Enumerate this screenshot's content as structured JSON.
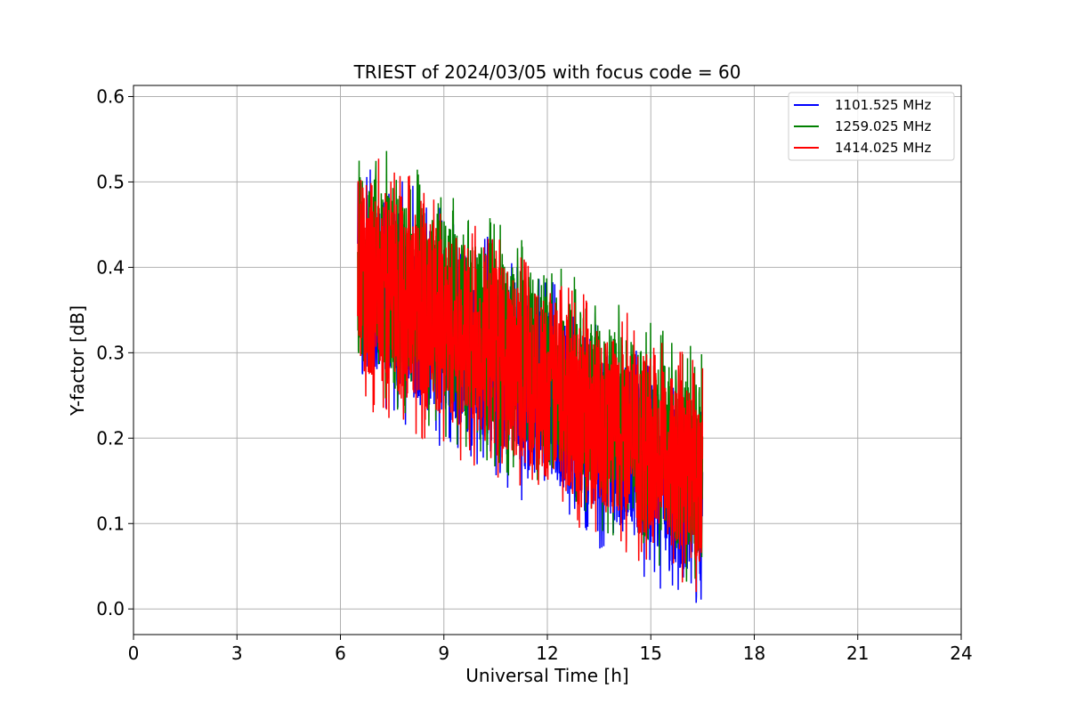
{
  "chart_data": {
    "type": "line",
    "title": "TRIEST of 2024/03/05 with focus code = 60",
    "xlabel": "Universal Time [h]",
    "ylabel": "Y-factor [dB]",
    "xlim": [
      0,
      24
    ],
    "ylim": [
      -0.03,
      0.613
    ],
    "xticks": [
      0,
      3,
      6,
      9,
      12,
      15,
      18,
      21,
      24
    ],
    "yticks": [
      0.0,
      0.1,
      0.2,
      0.3,
      0.4,
      0.5,
      0.6
    ],
    "ytick_labels": [
      "0.0",
      "0.1",
      "0.2",
      "0.3",
      "0.4",
      "0.5",
      "0.6"
    ],
    "grid": true,
    "legend_position": "top-right",
    "series": [
      {
        "name": "1101.525 MHz",
        "color": "#0000ff",
        "trend": {
          "x": [
            6.5,
            16.5
          ],
          "low": [
            0.29,
            0.03
          ],
          "high": [
            0.5,
            0.23
          ]
        },
        "x": [
          6.5,
          7.0,
          7.5,
          8.0,
          8.5,
          9.0,
          9.5,
          10.0,
          10.5,
          11.0,
          11.5,
          12.0,
          12.5,
          13.0,
          13.5,
          14.0,
          14.5,
          15.0,
          15.5,
          16.0,
          16.5
        ],
        "y": [
          0.4,
          0.38,
          0.36,
          0.35,
          0.33,
          0.31,
          0.3,
          0.28,
          0.27,
          0.25,
          0.23,
          0.22,
          0.2,
          0.19,
          0.18,
          0.16,
          0.15,
          0.14,
          0.13,
          0.12,
          0.11
        ]
      },
      {
        "name": "1259.025 MHz",
        "color": "#008000",
        "trend": {
          "x": [
            6.5,
            16.5
          ],
          "low": [
            0.3,
            0.06
          ],
          "high": [
            0.52,
            0.26
          ]
        },
        "x": [
          6.5,
          7.0,
          7.5,
          8.0,
          8.5,
          9.0,
          9.5,
          10.0,
          10.5,
          11.0,
          11.5,
          12.0,
          12.5,
          13.0,
          13.5,
          14.0,
          14.5,
          15.0,
          15.5,
          16.0,
          16.5
        ],
        "y": [
          0.42,
          0.4,
          0.38,
          0.37,
          0.35,
          0.33,
          0.32,
          0.3,
          0.29,
          0.27,
          0.26,
          0.24,
          0.23,
          0.22,
          0.2,
          0.19,
          0.18,
          0.17,
          0.16,
          0.15,
          0.14
        ]
      },
      {
        "name": "1414.025 MHz",
        "color": "#ff0000",
        "trend": {
          "x": [
            6.5,
            16.5
          ],
          "low": [
            0.28,
            0.05
          ],
          "high": [
            0.51,
            0.25
          ]
        },
        "x": [
          6.5,
          7.0,
          7.5,
          8.0,
          8.5,
          9.0,
          9.5,
          10.0,
          10.5,
          11.0,
          11.5,
          12.0,
          12.5,
          13.0,
          13.5,
          14.0,
          14.5,
          15.0,
          15.5,
          16.0,
          16.5
        ],
        "y": [
          0.41,
          0.39,
          0.37,
          0.36,
          0.34,
          0.32,
          0.31,
          0.29,
          0.28,
          0.26,
          0.25,
          0.23,
          0.22,
          0.21,
          0.19,
          0.18,
          0.17,
          0.16,
          0.15,
          0.14,
          0.13
        ]
      }
    ]
  }
}
